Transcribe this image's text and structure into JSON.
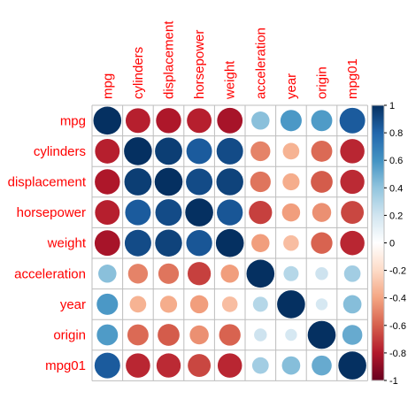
{
  "chart_data": {
    "type": "heatmap",
    "subtype": "correlation-circle-matrix",
    "variables": [
      "mpg",
      "cylinders",
      "displacement",
      "horsepower",
      "weight",
      "acceleration",
      "year",
      "origin",
      "mpg01"
    ],
    "matrix": [
      [
        1.0,
        -0.78,
        -0.81,
        -0.78,
        -0.83,
        0.42,
        0.58,
        0.57,
        0.84
      ],
      [
        -0.78,
        1.0,
        0.95,
        0.84,
        0.9,
        -0.5,
        -0.35,
        -0.57,
        -0.76
      ],
      [
        -0.81,
        0.95,
        1.0,
        0.9,
        0.93,
        -0.54,
        -0.37,
        -0.61,
        -0.75
      ],
      [
        -0.78,
        0.84,
        0.9,
        1.0,
        0.86,
        -0.69,
        -0.42,
        -0.46,
        -0.67
      ],
      [
        -0.83,
        0.9,
        0.93,
        0.86,
        1.0,
        -0.42,
        -0.31,
        -0.59,
        -0.76
      ],
      [
        0.42,
        -0.5,
        -0.54,
        -0.69,
        -0.42,
        1.0,
        0.29,
        0.21,
        0.35
      ],
      [
        0.58,
        -0.35,
        -0.37,
        -0.42,
        -0.31,
        0.29,
        1.0,
        0.18,
        0.43
      ],
      [
        0.57,
        -0.57,
        -0.61,
        -0.46,
        -0.59,
        0.21,
        0.18,
        1.0,
        0.51
      ],
      [
        0.84,
        -0.76,
        -0.75,
        -0.67,
        -0.76,
        0.35,
        0.43,
        0.51,
        1.0
      ]
    ],
    "colorbar": {
      "ticks": [
        "1",
        "0.8",
        "0.6",
        "0.4",
        "0.2",
        "0",
        "-0.2",
        "-0.4",
        "-0.6",
        "-0.8",
        "-1"
      ],
      "range": [
        -1,
        1
      ]
    },
    "colors": {
      "label": "#ff0000",
      "grid": "#bdbdbd",
      "scale": [
        "#67001f",
        "#b2182b",
        "#d6604d",
        "#f4a582",
        "#fddbc7",
        "#ffffff",
        "#d1e5f0",
        "#92c5de",
        "#4393c3",
        "#2166ac",
        "#053061"
      ]
    }
  }
}
